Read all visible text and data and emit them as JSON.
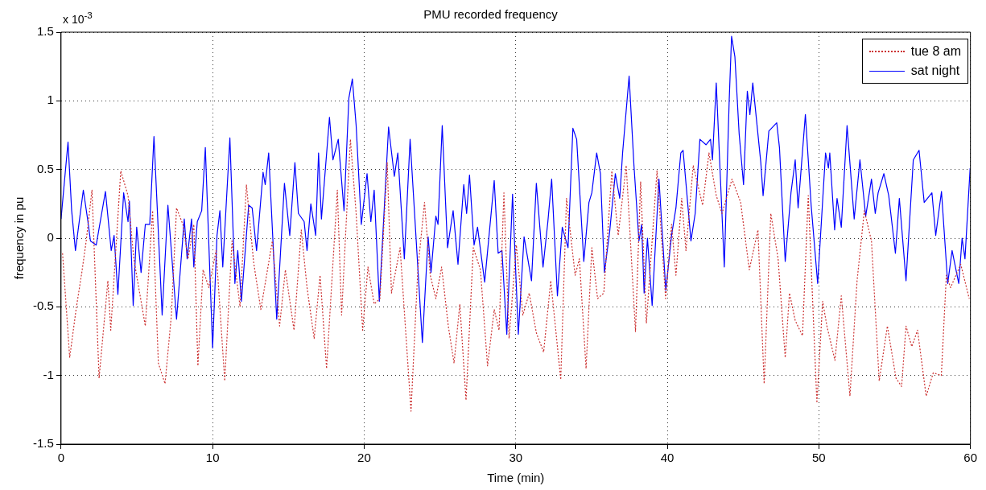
{
  "chart_data": {
    "type": "line",
    "title": "PMU recorded frequency",
    "xlabel": "Time (min)",
    "ylabel": "frequency in pu",
    "annotations": [
      "x 10$^{-3}$"
    ],
    "xlim": [
      0,
      60
    ],
    "xticks": [
      0,
      10,
      20,
      30,
      40,
      50,
      60
    ],
    "ylim": [
      -1.5,
      1.5
    ],
    "yticks": [
      -1.5,
      -1,
      -0.5,
      0,
      0.5,
      1,
      1.5
    ],
    "grid": true,
    "legend": "top right",
    "marker": "none",
    "series": [
      {
        "name": "tue 8 am",
        "color": "#cc3333",
        "line_style": "dotted",
        "x": [
          0.1,
          0.57,
          0.99,
          1.37,
          1.66,
          2.04,
          2.51,
          3.09,
          3.28,
          3.94,
          4.42,
          4.8,
          5.56,
          6.04,
          6.42,
          6.86,
          7.28,
          7.62,
          8.04,
          8.38,
          8.76,
          9.03,
          9.37,
          9.75,
          10.23,
          10.8,
          11.28,
          11.81,
          12.23,
          12.7,
          13.18,
          13.56,
          13.94,
          14.42,
          14.8,
          15.37,
          15.85,
          16.23,
          16.7,
          17.09,
          17.52,
          18.23,
          18.51,
          19.09,
          19.47,
          19.9,
          20.25,
          20.66,
          21.04,
          21.52,
          21.8,
          22.37,
          23.09,
          23.54,
          23.98,
          24.36,
          24.73,
          25.11,
          25.55,
          25.93,
          26.31,
          26.72,
          27.2,
          27.67,
          28.14,
          28.58,
          28.9,
          29.22,
          29.56,
          30.04,
          30.47,
          30.89,
          31.36,
          31.84,
          32.31,
          32.97,
          33.35,
          33.92,
          34.2,
          34.64,
          35.02,
          35.4,
          35.81,
          36.34,
          36.76,
          37.29,
          37.9,
          38.24,
          38.62,
          39.32,
          39.89,
          40.28,
          40.57,
          40.95,
          41.23,
          41.71,
          42.33,
          42.75,
          43.23,
          43.61,
          44.27,
          44.84,
          45.41,
          45.98,
          46.39,
          46.83,
          47.31,
          47.78,
          48.06,
          48.44,
          48.92,
          49.3,
          49.87,
          50.25,
          50.53,
          51.06,
          51.48,
          52.05,
          52.52,
          53.0,
          53.47,
          53.98,
          54.52,
          55.09,
          55.46,
          55.75,
          56.13,
          56.51,
          57.08,
          57.55,
          58.08,
          58.41,
          58.69,
          59.36,
          59.92
        ],
        "values": [
          -0.11,
          -0.87,
          -0.52,
          -0.25,
          -0.02,
          0.35,
          -1.02,
          -0.31,
          -0.67,
          0.49,
          0.31,
          -0.15,
          -0.64,
          0.2,
          -0.91,
          -1.06,
          -0.56,
          0.22,
          0.1,
          -0.15,
          0.1,
          -0.93,
          -0.23,
          -0.36,
          -0.09,
          -1.04,
          -0.02,
          -0.5,
          0.39,
          -0.17,
          -0.52,
          -0.27,
          -0.02,
          -0.64,
          -0.23,
          -0.67,
          0.06,
          -0.36,
          -0.73,
          -0.27,
          -0.95,
          0.35,
          -0.56,
          0.72,
          0.18,
          -0.67,
          -0.21,
          -0.48,
          -0.44,
          0.55,
          -0.4,
          -0.07,
          -1.26,
          -0.23,
          0.26,
          -0.27,
          -0.44,
          -0.21,
          -0.64,
          -0.91,
          -0.48,
          -1.18,
          -0.07,
          -0.23,
          -0.93,
          -0.52,
          -0.67,
          0.33,
          -0.73,
          -0.05,
          -0.56,
          -0.4,
          -0.69,
          -0.83,
          -0.31,
          -1.03,
          0.29,
          -0.27,
          -0.15,
          -0.95,
          -0.07,
          -0.44,
          -0.4,
          0.49,
          0.02,
          0.53,
          -0.68,
          0.41,
          -0.62,
          0.49,
          -0.44,
          0.1,
          -0.27,
          0.29,
          -0.09,
          0.53,
          0.24,
          0.62,
          0.31,
          0.18,
          0.43,
          0.26,
          -0.23,
          0.06,
          -1.06,
          0.18,
          -0.15,
          -0.87,
          -0.4,
          -0.6,
          -0.71,
          0.31,
          -1.2,
          -0.46,
          -0.64,
          -0.89,
          -0.42,
          -1.15,
          -0.31,
          0.2,
          -0.02,
          -1.04,
          -0.64,
          -1.02,
          -1.08,
          -0.64,
          -0.79,
          -0.67,
          -1.15,
          -0.98,
          -1.0,
          -0.27,
          -0.36,
          -0.19,
          -0.44
        ]
      },
      {
        "name": "sat night",
        "color": "#0000ff",
        "line_style": "solid",
        "x": [
          0,
          0.46,
          0.7,
          0.95,
          1.47,
          1.75,
          1.94,
          2.32,
          2.93,
          3.31,
          3.5,
          3.75,
          4.13,
          4.42,
          4.51,
          4.76,
          4.99,
          5.28,
          5.56,
          5.85,
          6.13,
          6.67,
          7.05,
          7.62,
          8.13,
          8.32,
          8.61,
          8.76,
          8.99,
          9.28,
          9.52,
          10.0,
          10.29,
          10.48,
          10.67,
          11.14,
          11.47,
          11.66,
          11.9,
          12.38,
          12.61,
          12.9,
          13.33,
          13.47,
          13.7,
          14.23,
          14.74,
          15.09,
          15.43,
          15.66,
          16.04,
          16.23,
          16.48,
          16.8,
          16.99,
          17.18,
          17.71,
          17.94,
          18.29,
          18.67,
          18.99,
          19.22,
          19.47,
          19.81,
          20.19,
          20.44,
          20.66,
          21.0,
          21.61,
          21.99,
          22.22,
          22.65,
          23.03,
          23.84,
          24.22,
          24.41,
          24.73,
          24.87,
          25.15,
          25.5,
          25.87,
          26.19,
          26.57,
          26.76,
          26.95,
          27.25,
          27.48,
          27.95,
          28.58,
          28.84,
          29.09,
          29.41,
          29.79,
          30.17,
          30.55,
          31.04,
          31.36,
          31.8,
          32.12,
          32.37,
          32.75,
          33.07,
          33.45,
          33.77,
          34.02,
          34.49,
          34.83,
          35.02,
          35.34,
          35.59,
          35.85,
          36.19,
          36.57,
          36.86,
          37.05,
          37.48,
          37.8,
          38.13,
          38.31,
          38.47,
          38.69,
          39.0,
          39.45,
          39.9,
          40.28,
          40.57,
          40.89,
          41.04,
          41.27,
          41.56,
          41.84,
          42.15,
          42.56,
          42.85,
          42.98,
          43.23,
          43.76,
          44.08,
          44.24,
          44.46,
          44.74,
          45.03,
          45.28,
          45.45,
          45.64,
          46.17,
          46.32,
          46.7,
          47.22,
          47.4,
          47.78,
          48.16,
          48.44,
          48.63,
          49.11,
          49.49,
          49.92,
          50.44,
          50.63,
          50.72,
          51.04,
          51.2,
          51.48,
          51.86,
          52.33,
          52.71,
          53.09,
          53.47,
          53.72,
          53.91,
          54.29,
          54.61,
          55.05,
          55.31,
          55.75,
          56.23,
          56.61,
          56.95,
          57.46,
          57.71,
          58.09,
          58.5,
          58.79,
          59.23,
          59.45,
          59.64,
          59.98
        ],
        "values": [
          0.14,
          0.7,
          0.2,
          -0.09,
          0.35,
          0.14,
          -0.02,
          -0.05,
          0.34,
          -0.09,
          0.02,
          -0.41,
          0.33,
          0.12,
          0.27,
          -0.49,
          0.08,
          -0.25,
          0.1,
          0.1,
          0.74,
          -0.56,
          0.24,
          -0.59,
          0.14,
          -0.15,
          0.14,
          -0.21,
          0.12,
          0.2,
          0.66,
          -0.8,
          0.02,
          0.2,
          -0.21,
          0.73,
          -0.33,
          -0.09,
          -0.46,
          0.24,
          0.22,
          -0.09,
          0.48,
          0.39,
          0.62,
          -0.59,
          0.4,
          0.02,
          0.55,
          0.18,
          0.12,
          -0.09,
          0.25,
          0.02,
          0.62,
          0.14,
          0.88,
          0.57,
          0.72,
          0.2,
          1.02,
          1.16,
          0.82,
          0.1,
          0.47,
          0.12,
          0.35,
          -0.46,
          0.81,
          0.45,
          0.62,
          -0.15,
          0.72,
          -0.76,
          0.01,
          -0.25,
          0.16,
          0.1,
          0.82,
          -0.07,
          0.2,
          -0.19,
          0.39,
          0.18,
          0.46,
          -0.05,
          0.08,
          -0.32,
          0.42,
          -0.11,
          -0.09,
          -0.7,
          0.32,
          -0.7,
          0.01,
          -0.31,
          0.4,
          -0.21,
          0.12,
          0.43,
          -0.42,
          0.08,
          -0.07,
          0.8,
          0.72,
          -0.17,
          0.26,
          0.33,
          0.62,
          0.47,
          -0.25,
          0.04,
          0.47,
          0.29,
          0.62,
          1.18,
          0.53,
          -0.02,
          0.1,
          -0.4,
          0,
          -0.49,
          0.43,
          -0.38,
          0.02,
          0.22,
          0.62,
          0.64,
          0.35,
          -0.02,
          0.18,
          0.72,
          0.68,
          0.72,
          0.57,
          1.13,
          -0.21,
          0.99,
          1.47,
          1.32,
          0.76,
          0.39,
          1.07,
          0.9,
          1.13,
          0.55,
          0.31,
          0.78,
          0.84,
          0.66,
          -0.17,
          0.33,
          0.57,
          0.22,
          0.9,
          0.24,
          -0.33,
          0.62,
          0.51,
          0.62,
          0.06,
          0.29,
          0.08,
          0.82,
          0.14,
          0.57,
          0.16,
          0.43,
          0.18,
          0.33,
          0.47,
          0.31,
          -0.11,
          0.29,
          -0.31,
          0.57,
          0.64,
          0.26,
          0.33,
          0.02,
          0.34,
          -0.33,
          -0.09,
          -0.33,
          0,
          -0.15,
          0.51
        ]
      }
    ]
  }
}
